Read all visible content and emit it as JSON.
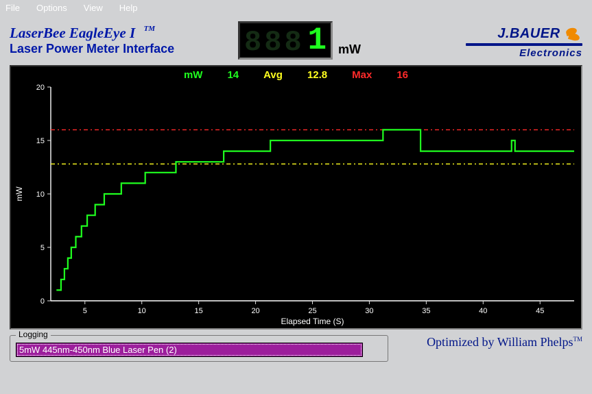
{
  "menu": {
    "file": "File",
    "options": "Options",
    "view": "View",
    "help": "Help"
  },
  "title": {
    "line1": "LaserBee EagleEye I",
    "tm": "TM",
    "line2": "Laser Power Meter Interface"
  },
  "lcd": {
    "reading": "1",
    "unit": "mW",
    "dim_placeholder": "888"
  },
  "logo": {
    "top": "J.BAUER",
    "sub": "Electronics"
  },
  "stats": {
    "mw_label": "mW",
    "mw_val": "14",
    "avg_label": "Avg",
    "avg_val": "12.8",
    "max_label": "Max",
    "max_val": "16"
  },
  "chart": {
    "type": "line-step",
    "xlabel": "Elapsed Time (S)",
    "ylabel": "mW",
    "xlim": [
      2,
      48
    ],
    "ylim": [
      0,
      20
    ],
    "xticks": [
      5,
      10,
      15,
      20,
      25,
      30,
      35,
      40,
      45
    ],
    "yticks": [
      0,
      5,
      10,
      15,
      20
    ],
    "tick_fontsize": 11,
    "label_fontsize": 12,
    "background_color": "#000000",
    "axis_color": "#ffffff",
    "tick_color": "#e0e0e0",
    "text_color": "#ffffff",
    "trace_color": "#1fff1f",
    "trace_width": 2.2,
    "avg_line_color": "#ffff1f",
    "avg_line_dash": "6 4 2 4",
    "avg_line_y": 12.8,
    "max_line_color": "#ff2a2a",
    "max_line_dash": "6 4 2 4",
    "max_line_y": 16,
    "points": [
      [
        2.5,
        1
      ],
      [
        2.9,
        1
      ],
      [
        2.9,
        2
      ],
      [
        3.2,
        2
      ],
      [
        3.2,
        3
      ],
      [
        3.5,
        3
      ],
      [
        3.5,
        4
      ],
      [
        3.8,
        4
      ],
      [
        3.8,
        5
      ],
      [
        4.2,
        5
      ],
      [
        4.2,
        6
      ],
      [
        4.7,
        6
      ],
      [
        4.7,
        7
      ],
      [
        5.2,
        7
      ],
      [
        5.2,
        8
      ],
      [
        5.9,
        8
      ],
      [
        5.9,
        9
      ],
      [
        6.7,
        9
      ],
      [
        6.7,
        10
      ],
      [
        8.2,
        10
      ],
      [
        8.2,
        11
      ],
      [
        10.3,
        11
      ],
      [
        10.3,
        12
      ],
      [
        13.0,
        12
      ],
      [
        13.0,
        13
      ],
      [
        17.2,
        13
      ],
      [
        17.2,
        14
      ],
      [
        21.3,
        14
      ],
      [
        21.3,
        15
      ],
      [
        27.5,
        15
      ],
      [
        27.5,
        15
      ],
      [
        31.2,
        15
      ],
      [
        31.2,
        16
      ],
      [
        34.5,
        16
      ],
      [
        34.5,
        14
      ],
      [
        42.5,
        14
      ],
      [
        42.5,
        15
      ],
      [
        42.8,
        15
      ],
      [
        42.8,
        14
      ],
      [
        48,
        14
      ]
    ]
  },
  "logging": {
    "legend": "Logging",
    "value": "5mW 445nm-450nm Blue Laser Pen (2)"
  },
  "credit": {
    "text": "Optimized by William Phelps",
    "tm": "TM"
  }
}
